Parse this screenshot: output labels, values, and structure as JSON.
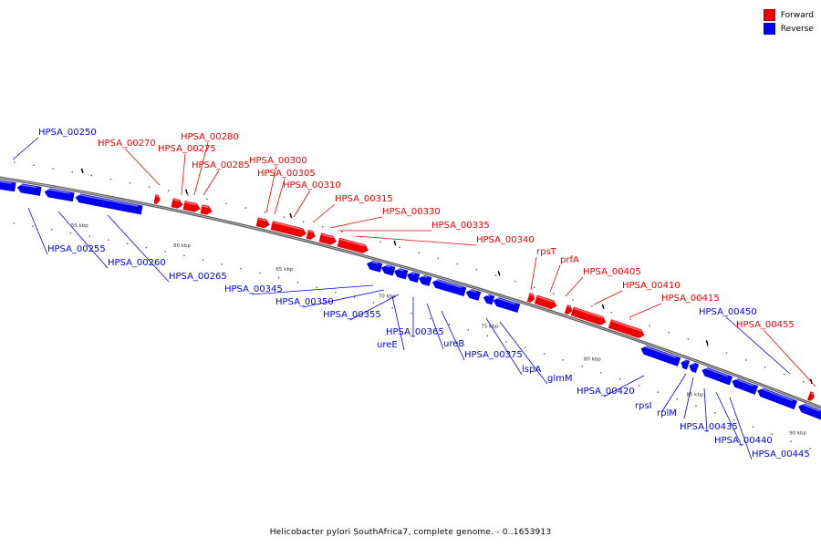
{
  "colors": {
    "forward": "#ee0000",
    "reverse": "#0000ee",
    "backbone": "#777777",
    "tick": "#000000"
  },
  "legend": {
    "forward_label": "Forward",
    "reverse_label": "Reverse"
  },
  "caption": "Helicobacter pylori SouthAfrica7, complete genome. - 0..1653913",
  "scale": {
    "unit": "kbp",
    "ticks": [
      {
        "kbp": 55,
        "label": "55 kbp"
      },
      {
        "kbp": 60,
        "label": "60 kbp"
      },
      {
        "kbp": 65,
        "label": "65 kbp"
      },
      {
        "kbp": 70,
        "label": "70 kbp"
      },
      {
        "kbp": 75,
        "label": "75 kbp"
      },
      {
        "kbp": 80,
        "label": "80 kbp"
      },
      {
        "kbp": 85,
        "label": "85 kbp"
      },
      {
        "kbp": 90,
        "label": "90 kbp"
      }
    ]
  },
  "genes": [
    {
      "label": "HPSA_00250",
      "strand": "reverse"
    },
    {
      "label": "HPSA_00255",
      "strand": "reverse"
    },
    {
      "label": "HPSA_00260",
      "strand": "reverse"
    },
    {
      "label": "HPSA_00265",
      "strand": "reverse"
    },
    {
      "label": "HPSA_00270",
      "strand": "forward"
    },
    {
      "label": "HPSA_00275",
      "strand": "forward"
    },
    {
      "label": "HPSA_00280",
      "strand": "forward"
    },
    {
      "label": "HPSA_00285",
      "strand": "forward"
    },
    {
      "label": "HPSA_00300",
      "strand": "forward"
    },
    {
      "label": "HPSA_00305",
      "strand": "forward"
    },
    {
      "label": "HPSA_00310",
      "strand": "forward"
    },
    {
      "label": "HPSA_00315",
      "strand": "forward"
    },
    {
      "label": "HPSA_00330",
      "strand": "forward"
    },
    {
      "label": "HPSA_00335",
      "strand": "forward"
    },
    {
      "label": "HPSA_00340",
      "strand": "forward"
    },
    {
      "label": "HPSA_00345",
      "strand": "reverse"
    },
    {
      "label": "HPSA_00350",
      "strand": "reverse"
    },
    {
      "label": "HPSA_00355",
      "strand": "reverse"
    },
    {
      "label": "HPSA_00365",
      "strand": "reverse"
    },
    {
      "label": "ureE",
      "strand": "reverse"
    },
    {
      "label": "ureB",
      "strand": "reverse"
    },
    {
      "label": "HPSA_00375",
      "strand": "reverse"
    },
    {
      "label": "lspA",
      "strand": "reverse"
    },
    {
      "label": "glmM",
      "strand": "reverse"
    },
    {
      "label": "rpsT",
      "strand": "forward"
    },
    {
      "label": "prfA",
      "strand": "forward"
    },
    {
      "label": "HPSA_00405",
      "strand": "forward"
    },
    {
      "label": "HPSA_00410",
      "strand": "forward"
    },
    {
      "label": "HPSA_00415",
      "strand": "forward"
    },
    {
      "label": "HPSA_00420",
      "strand": "reverse"
    },
    {
      "label": "rpsI",
      "strand": "reverse"
    },
    {
      "label": "rplM",
      "strand": "reverse"
    },
    {
      "label": "HPSA_00435",
      "strand": "reverse"
    },
    {
      "label": "HPSA_00440",
      "strand": "reverse"
    },
    {
      "label": "HPSA_00445",
      "strand": "reverse"
    },
    {
      "label": "HPSA_00450",
      "strand": "reverse"
    },
    {
      "label": "HPSA_00455",
      "strand": "forward"
    }
  ]
}
